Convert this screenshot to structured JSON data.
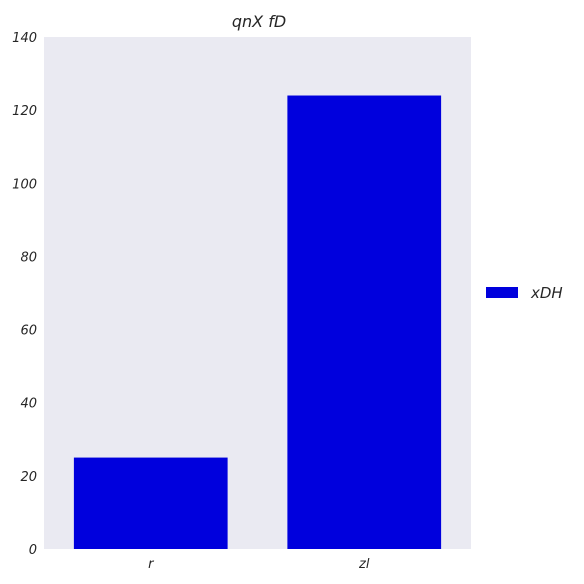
{
  "chart_data": {
    "type": "bar",
    "title": "qnX fD",
    "xlabel": "",
    "ylabel": "",
    "categories": [
      "r",
      "zl"
    ],
    "series": [
      {
        "name": "xDH",
        "values": [
          25,
          124
        ],
        "color": "#0000dd"
      }
    ],
    "ylim": [
      0,
      140
    ],
    "yticks": [
      0,
      20,
      40,
      60,
      80,
      100,
      120,
      140
    ],
    "grid": false,
    "legend_position": "right",
    "background_color": "#eaeaf2"
  }
}
